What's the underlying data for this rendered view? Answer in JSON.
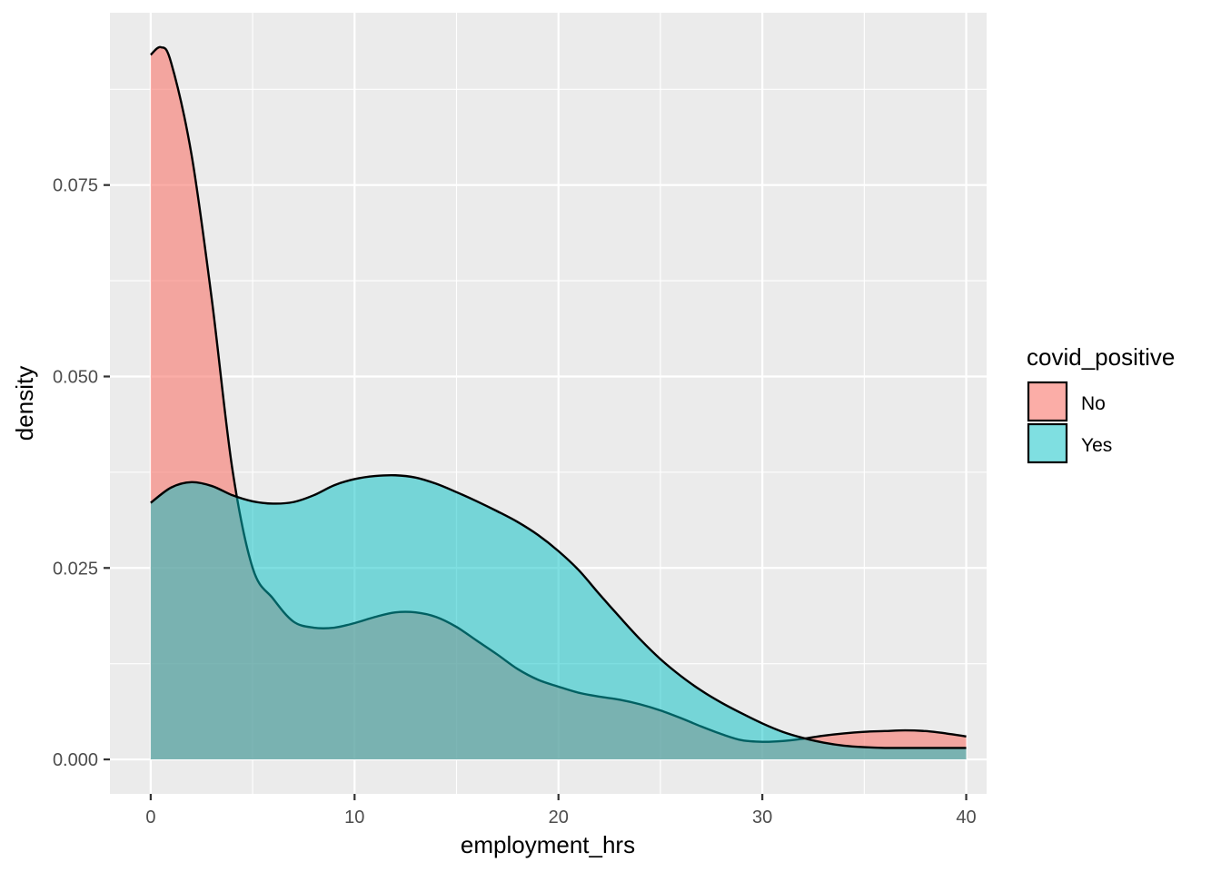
{
  "chart_data": {
    "type": "area",
    "subtype": "density",
    "title": "",
    "xlabel": "employment_hrs",
    "ylabel": "density",
    "xlim": [
      -2,
      41
    ],
    "ylim": [
      -0.0045,
      0.0975
    ],
    "x_ticks": [
      0,
      10,
      20,
      30,
      40
    ],
    "x_tick_labels": [
      "0",
      "10",
      "20",
      "30",
      "40"
    ],
    "y_ticks": [
      0.0,
      0.025,
      0.05,
      0.075
    ],
    "y_tick_labels": [
      "0.000",
      "0.025",
      "0.050",
      "0.075"
    ],
    "grid": true,
    "legend": {
      "title": "covid_positive",
      "position": "right",
      "entries": [
        "No",
        "Yes"
      ]
    },
    "series": [
      {
        "name": "No",
        "color": "#F8766D",
        "opacity": 0.6,
        "x": [
          0,
          0.5,
          1,
          2,
          3,
          4,
          5,
          6,
          7,
          8,
          9,
          10,
          11,
          12,
          13,
          14,
          15,
          16,
          17,
          18,
          19,
          20,
          21,
          22,
          23,
          24,
          25,
          26,
          27,
          28,
          29,
          30,
          31,
          32,
          33,
          34,
          35,
          36,
          37,
          38,
          39,
          40
        ],
        "y": [
          0.092,
          0.093,
          0.091,
          0.079,
          0.06,
          0.038,
          0.025,
          0.021,
          0.018,
          0.0172,
          0.0172,
          0.0178,
          0.0186,
          0.0192,
          0.0192,
          0.0186,
          0.0173,
          0.0155,
          0.0137,
          0.0118,
          0.0104,
          0.0095,
          0.0087,
          0.0082,
          0.0078,
          0.0072,
          0.0064,
          0.0054,
          0.0043,
          0.0033,
          0.0025,
          0.0023,
          0.0024,
          0.0027,
          0.0031,
          0.0034,
          0.0036,
          0.0037,
          0.0038,
          0.0037,
          0.0034,
          0.003
        ]
      },
      {
        "name": "Yes",
        "color": "#00BFC4",
        "opacity": 0.5,
        "x": [
          0,
          1,
          2,
          3,
          4,
          5,
          6,
          7,
          8,
          9,
          10,
          11,
          12,
          13,
          14,
          15,
          16,
          17,
          18,
          19,
          20,
          21,
          22,
          23,
          24,
          25,
          26,
          27,
          28,
          29,
          30,
          31,
          32,
          33,
          34,
          35,
          36,
          37,
          38,
          39,
          40
        ],
        "y": [
          0.0335,
          0.0355,
          0.0362,
          0.0357,
          0.0345,
          0.0337,
          0.0334,
          0.0336,
          0.0345,
          0.0358,
          0.0366,
          0.037,
          0.0371,
          0.0368,
          0.036,
          0.0349,
          0.0337,
          0.0324,
          0.031,
          0.0293,
          0.0272,
          0.0247,
          0.0216,
          0.0186,
          0.0157,
          0.0131,
          0.0109,
          0.009,
          0.0074,
          0.006,
          0.0047,
          0.0036,
          0.0028,
          0.0022,
          0.0018,
          0.0016,
          0.0015,
          0.0015,
          0.0015,
          0.0015,
          0.0015
        ]
      }
    ]
  }
}
